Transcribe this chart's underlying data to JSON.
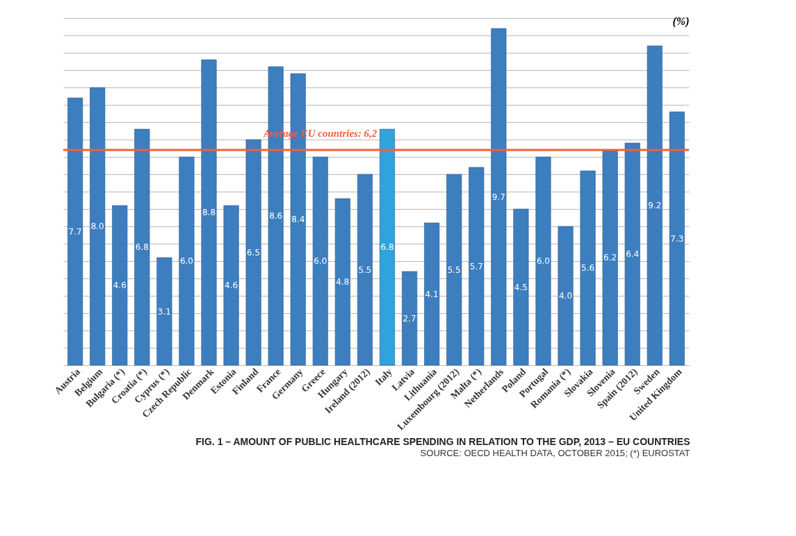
{
  "chart_data": {
    "type": "bar",
    "title": "FIG. 1 – AMOUNT OF PUBLIC HEALTHCARE SPENDING IN RELATION TO THE GDP, 2013 – EU COUNTRIES",
    "ylabel": "(%)",
    "annotations": [
      "SOURCE: OECD HEALTH DATA, OCTOBER 2015; (*) EUROSTAT"
    ],
    "categories": [
      "Austria",
      "Belgium",
      "Bulgaria (*)",
      "Croatia (*)",
      "Cyprus (*)",
      "Czech Republic",
      "Denmark",
      "Estonia",
      "Finland",
      "France",
      "Germany",
      "Greece",
      "Hungary",
      "Ireland (2012)",
      "Italy",
      "Latvia",
      "Lithuania",
      "Luxembourg (2012)",
      "Malta (*)",
      "Netherlands",
      "Poland",
      "Portugal",
      "Romania (*)",
      "Slovakia",
      "Slovenia",
      "Spain (2012)",
      "Sweden",
      "United Kingdom"
    ],
    "values": [
      7.7,
      8.0,
      4.6,
      6.8,
      3.1,
      6.0,
      8.8,
      4.6,
      6.5,
      8.6,
      8.4,
      6.0,
      4.8,
      5.5,
      6.8,
      2.7,
      4.1,
      5.5,
      5.7,
      9.7,
      4.5,
      6.0,
      4.0,
      5.6,
      6.2,
      6.4,
      9.2,
      7.3
    ],
    "colors": [
      "#3d7ebf",
      "#3d7ebf",
      "#3d7ebf",
      "#3d7ebf",
      "#3d7ebf",
      "#3d7ebf",
      "#3d7ebf",
      "#3d7ebf",
      "#3d7ebf",
      "#3d7ebf",
      "#3d7ebf",
      "#3d7ebf",
      "#3d7ebf",
      "#3d7ebf",
      "#2ea3dd",
      "#3d7ebf",
      "#3d7ebf",
      "#3d7ebf",
      "#3d7ebf",
      "#3d7ebf",
      "#3d7ebf",
      "#3d7ebf",
      "#3d7ebf",
      "#3d7ebf",
      "#3d7ebf",
      "#3d7ebf",
      "#3d7ebf",
      "#3d7ebf"
    ],
    "value_labels": [
      "7.7",
      "8.0",
      "4.6",
      "6.8",
      "3.1",
      "6.0",
      "8.8",
      "4.6",
      "6.5",
      "8.6",
      "8.4",
      "6.0",
      "4.8",
      "5.5",
      "6.8",
      "2.7",
      "4.1",
      "5.5",
      "5.7",
      "9.7",
      "4.5",
      "6.0",
      "4.0",
      "5.6",
      "6.2",
      "6.4",
      "9.2",
      "7.3"
    ],
    "grid": "y",
    "tick_labels": "x",
    "ref_lines": [
      {
        "axis": "y",
        "value": 6.2,
        "label": "Average EU countries: 6,2",
        "color": "#f0603c"
      }
    ]
  }
}
